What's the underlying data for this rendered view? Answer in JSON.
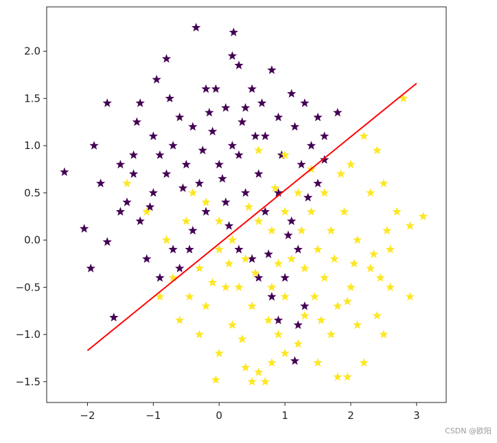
{
  "chart_data": {
    "type": "scatter",
    "title": "",
    "xlabel": "",
    "ylabel": "",
    "xlim": [
      -2.62,
      3.45
    ],
    "ylim": [
      -1.72,
      2.47
    ],
    "grid": false,
    "legend": "none",
    "marker": "star",
    "x_ticks": [
      -2,
      -1,
      0,
      1,
      2,
      3
    ],
    "y_ticks": [
      -1.5,
      -1.0,
      -0.5,
      0.0,
      0.5,
      1.0,
      1.5,
      2.0
    ],
    "x_tick_labels": [
      "−2",
      "−1",
      "0",
      "1",
      "2",
      "3"
    ],
    "y_tick_labels": [
      "−1.5",
      "−1.0",
      "−0.5",
      "0.0",
      "0.5",
      "1.0",
      "1.5",
      "2.0"
    ],
    "series": [
      {
        "color": "#440154",
        "points": [
          [
            -0.35,
            2.25
          ],
          [
            0.22,
            2.2
          ],
          [
            -0.8,
            1.92
          ],
          [
            -0.2,
            1.6
          ],
          [
            0.2,
            1.95
          ],
          [
            0.3,
            1.85
          ],
          [
            -0.95,
            1.7
          ],
          [
            -1.2,
            1.45
          ],
          [
            -0.6,
            1.3
          ],
          [
            0.1,
            1.4
          ],
          [
            0.5,
            1.6
          ],
          [
            0.8,
            1.8
          ],
          [
            1.1,
            1.55
          ],
          [
            1.3,
            1.45
          ],
          [
            0.9,
            1.3
          ],
          [
            0.55,
            1.1
          ],
          [
            0.2,
            1.0
          ],
          [
            -0.1,
            1.15
          ],
          [
            -0.4,
            1.2
          ],
          [
            -0.7,
            1.0
          ],
          [
            -1.0,
            1.1
          ],
          [
            -1.3,
            0.9
          ],
          [
            -1.5,
            0.8
          ],
          [
            -1.8,
            0.6
          ],
          [
            -2.35,
            0.72
          ],
          [
            -2.05,
            0.12
          ],
          [
            -1.95,
            -0.3
          ],
          [
            -1.7,
            -0.02
          ],
          [
            -1.6,
            -0.82
          ],
          [
            -1.4,
            0.4
          ],
          [
            -1.2,
            0.2
          ],
          [
            -1.0,
            0.5
          ],
          [
            -0.8,
            0.7
          ],
          [
            -0.5,
            0.8
          ],
          [
            -0.3,
            0.6
          ],
          [
            0.0,
            0.8
          ],
          [
            0.3,
            0.9
          ],
          [
            0.6,
            0.7
          ],
          [
            0.9,
            0.5
          ],
          [
            1.1,
            0.2
          ],
          [
            1.2,
            -0.1
          ],
          [
            1.0,
            -0.4
          ],
          [
            0.8,
            -0.6
          ],
          [
            1.3,
            -0.7
          ],
          [
            1.2,
            -0.9
          ],
          [
            0.9,
            -0.85
          ],
          [
            1.15,
            -1.28
          ],
          [
            -0.7,
            -0.1
          ],
          [
            -0.4,
            0.1
          ],
          [
            -0.2,
            0.3
          ],
          [
            0.1,
            0.4
          ],
          [
            0.4,
            0.5
          ],
          [
            0.7,
            0.3
          ],
          [
            1.5,
            1.3
          ],
          [
            1.8,
            1.35
          ],
          [
            1.6,
            1.1
          ],
          [
            1.4,
            1.0
          ],
          [
            -1.1,
            -0.2
          ],
          [
            -0.9,
            -0.4
          ],
          [
            -0.6,
            -0.3
          ],
          [
            0.5,
            -0.2
          ],
          [
            0.3,
            -0.1
          ],
          [
            0.6,
            -0.4
          ],
          [
            -1.7,
            1.45
          ],
          [
            -1.9,
            1.0
          ],
          [
            -0.05,
            1.6
          ],
          [
            0.4,
            1.4
          ],
          [
            0.7,
            1.1
          ],
          [
            1.25,
            0.8
          ],
          [
            1.5,
            0.6
          ],
          [
            -1.5,
            0.3
          ],
          [
            -1.3,
            0.7
          ],
          [
            -0.9,
            0.9
          ],
          [
            -0.25,
            0.95
          ],
          [
            0.95,
            0.9
          ],
          [
            -0.15,
            1.35
          ],
          [
            0.35,
            1.25
          ],
          [
            -1.05,
            0.35
          ],
          [
            -0.55,
            0.55
          ],
          [
            0.05,
            0.65
          ],
          [
            0.75,
            -0.15
          ],
          [
            1.05,
            0.05
          ],
          [
            1.35,
            0.45
          ],
          [
            -0.45,
            -0.1
          ],
          [
            0.15,
            0.15
          ],
          [
            -1.25,
            1.25
          ],
          [
            -0.75,
            1.5
          ],
          [
            0.65,
            1.45
          ],
          [
            1.15,
            1.2
          ],
          [
            1.6,
            0.85
          ]
        ]
      },
      {
        "color": "#fde725",
        "points": [
          [
            2.8,
            1.5
          ],
          [
            2.2,
            1.1
          ],
          [
            2.4,
            0.95
          ],
          [
            2.0,
            0.8
          ],
          [
            2.5,
            0.6
          ],
          [
            2.7,
            0.3
          ],
          [
            3.1,
            0.25
          ],
          [
            2.9,
            0.15
          ],
          [
            2.6,
            -0.1
          ],
          [
            2.3,
            -0.3
          ],
          [
            2.0,
            -0.5
          ],
          [
            1.8,
            -0.7
          ],
          [
            2.1,
            -0.9
          ],
          [
            2.5,
            -1.0
          ],
          [
            2.2,
            -1.3
          ],
          [
            1.95,
            -1.45
          ],
          [
            1.8,
            -1.45
          ],
          [
            1.5,
            -1.3
          ],
          [
            1.2,
            -1.1
          ],
          [
            1.0,
            -1.2
          ],
          [
            0.8,
            -1.3
          ],
          [
            0.6,
            -1.4
          ],
          [
            0.4,
            -1.35
          ],
          [
            0.7,
            -1.5
          ],
          [
            0.5,
            -1.5
          ],
          [
            -0.05,
            -1.48
          ],
          [
            0.0,
            -1.2
          ],
          [
            -0.3,
            -1.0
          ],
          [
            -0.6,
            -0.85
          ],
          [
            -0.9,
            -0.6
          ],
          [
            -0.7,
            -0.4
          ],
          [
            -0.3,
            -0.3
          ],
          [
            0.0,
            -0.1
          ],
          [
            0.3,
            -0.5
          ],
          [
            0.5,
            -0.7
          ],
          [
            0.8,
            -0.5
          ],
          [
            1.0,
            -0.6
          ],
          [
            1.3,
            -0.3
          ],
          [
            1.5,
            -0.1
          ],
          [
            1.7,
            0.1
          ],
          [
            1.9,
            0.3
          ],
          [
            1.6,
            0.5
          ],
          [
            1.4,
            0.3
          ],
          [
            1.2,
            0.5
          ],
          [
            1.0,
            0.3
          ],
          [
            0.8,
            0.1
          ],
          [
            0.6,
            0.2
          ],
          [
            0.4,
            -0.2
          ],
          [
            0.2,
            0.0
          ],
          [
            0.0,
            0.2
          ],
          [
            -0.2,
            0.4
          ],
          [
            -0.4,
            0.5
          ],
          [
            -0.5,
            0.2
          ],
          [
            -1.4,
            0.6
          ],
          [
            -1.1,
            0.3
          ],
          [
            -0.8,
            0.0
          ],
          [
            2.6,
            -0.5
          ],
          [
            2.9,
            -0.6
          ],
          [
            2.4,
            -0.8
          ],
          [
            1.7,
            -1.0
          ],
          [
            1.3,
            -0.8
          ],
          [
            0.9,
            -1.0
          ],
          [
            0.2,
            -0.9
          ],
          [
            -0.2,
            -0.7
          ],
          [
            0.1,
            -0.5
          ],
          [
            1.1,
            -0.2
          ],
          [
            1.6,
            -0.4
          ],
          [
            2.1,
            0.0
          ],
          [
            2.3,
            0.5
          ],
          [
            1.85,
            0.7
          ],
          [
            1.4,
            0.75
          ],
          [
            1.0,
            0.9
          ],
          [
            0.6,
            0.95
          ],
          [
            2.55,
            0.1
          ],
          [
            2.05,
            -0.25
          ],
          [
            1.45,
            -0.6
          ],
          [
            0.75,
            -0.85
          ],
          [
            0.35,
            -1.05
          ],
          [
            -0.1,
            -0.45
          ],
          [
            0.45,
            0.35
          ],
          [
            0.9,
            -0.25
          ],
          [
            1.25,
            0.1
          ],
          [
            1.75,
            -0.2
          ],
          [
            2.35,
            -0.15
          ],
          [
            0.15,
            -0.25
          ],
          [
            -0.45,
            -0.6
          ],
          [
            1.55,
            -0.85
          ],
          [
            2.45,
            -0.4
          ],
          [
            0.55,
            -0.35
          ],
          [
            0.85,
            0.55
          ],
          [
            1.95,
            -0.65
          ]
        ]
      }
    ],
    "line": {
      "color": "#ff0000",
      "x": [
        -2.0,
        3.0
      ],
      "y": [
        -1.17,
        1.66
      ]
    }
  },
  "watermark": "CSDN @欧阳"
}
